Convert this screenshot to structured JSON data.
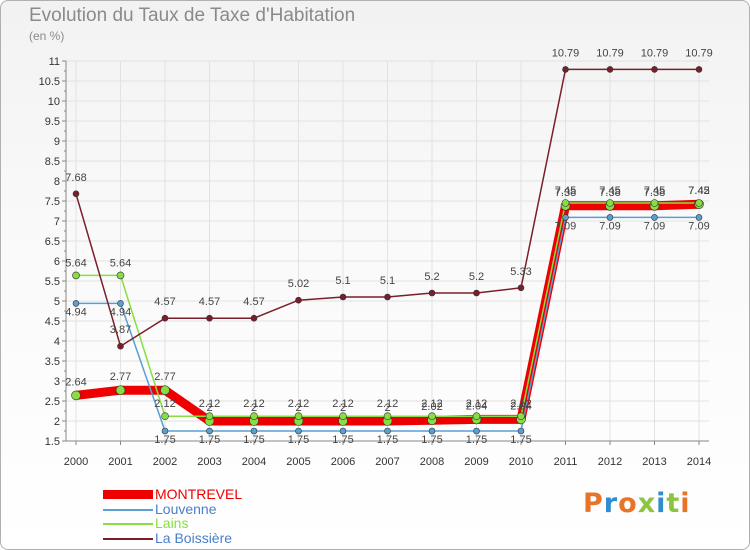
{
  "title": "Evolution du Taux de Taxe d'Habitation",
  "unit": "(en %)",
  "logo": "Proxiti",
  "colors": {
    "axis": "#888888",
    "grid": "#e2e2e2",
    "tick_text": "#333333",
    "value_text": "#444444",
    "logo": [
      "#e8742a",
      "#2f8dcf",
      "#e8742a",
      "#8cc63f",
      "#2f8dcf",
      "#8cc63f",
      "#e8742a"
    ]
  },
  "chart_data": {
    "type": "line",
    "title": "Evolution du Taux de Taxe d'Habitation",
    "ylabel": "(en %)",
    "x": [
      "2000",
      "2001",
      "2002",
      "2003",
      "2004",
      "2005",
      "2006",
      "2007",
      "2008",
      "2009",
      "2010",
      "2011",
      "2012",
      "2013",
      "2014"
    ],
    "ylim": [
      1.5,
      11
    ],
    "yticks": [
      "1.5",
      "2",
      "2.5",
      "3",
      "3.5",
      "4",
      "4.5",
      "5",
      "5.5",
      "6",
      "6.5",
      "7",
      "7.5",
      "8",
      "8.5",
      "9",
      "9.5",
      "10",
      "10.5",
      "11"
    ],
    "grid": true,
    "legend_position": "bottom-left",
    "series": [
      {
        "name": "MONTREVEL",
        "color": "#ee0000",
        "values": [
          2.64,
          2.77,
          2.77,
          2,
          2,
          2,
          2,
          2,
          2.02,
          2.04,
          2.04,
          7.38,
          7.38,
          7.38,
          7.42
        ],
        "labels": [
          "2.64",
          "2.77",
          "2.77",
          "2",
          "2",
          "2",
          "2",
          "2",
          "2.02",
          "2.04",
          "2.04",
          "7.38",
          "7.38",
          "7.38",
          "7.42"
        ]
      },
      {
        "name": "Louvenne",
        "color": "#5a9fd4",
        "values": [
          4.94,
          4.94,
          1.75,
          1.75,
          1.75,
          1.75,
          1.75,
          1.75,
          1.75,
          1.75,
          1.75,
          7.09,
          7.09,
          7.09,
          7.09
        ],
        "labels": [
          "4.94",
          "4.94",
          "1.75",
          "1.75",
          "1.75",
          "1.75",
          "1.75",
          "1.75",
          "1.75",
          "1.75",
          "1.75",
          "7.09",
          "7.09",
          "7.09",
          "7.09"
        ]
      },
      {
        "name": "Lains",
        "color": "#88dd44",
        "values": [
          5.64,
          5.64,
          2.12,
          2.12,
          2.12,
          2.12,
          2.12,
          2.12,
          2.12,
          2.12,
          2.12,
          7.45,
          7.45,
          7.45,
          7.45
        ],
        "labels": [
          "5.64",
          "5.64",
          "2.12",
          "2.12",
          "2.12",
          "2.12",
          "2.12",
          "2.12",
          "2.12",
          "2.12",
          "2.12",
          "7.45",
          "7.45",
          "7.45",
          "7.45"
        ]
      },
      {
        "name": "La Boissière",
        "color": "#7a1f2a",
        "values": [
          7.68,
          3.87,
          4.57,
          4.57,
          4.57,
          5.02,
          5.1,
          5.1,
          5.2,
          5.2,
          5.33,
          10.79,
          10.79,
          10.79,
          10.79
        ],
        "labels": [
          "7.68",
          "3.87",
          "4.57",
          "4.57",
          "4.57",
          "5.02",
          "5.1",
          "5.1",
          "5.2",
          "5.2",
          "5.33",
          "10.79",
          "10.79",
          "10.79",
          "10.79"
        ]
      }
    ]
  }
}
